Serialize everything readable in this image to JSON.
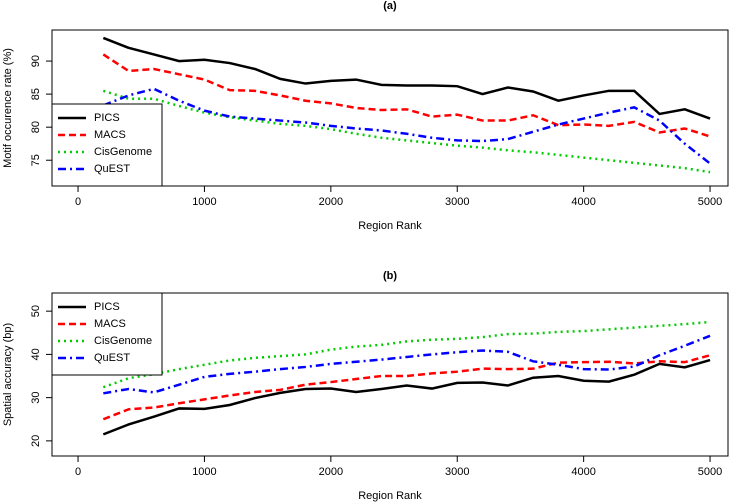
{
  "chart_data": [
    {
      "type": "line",
      "title": "(a)",
      "x_label": "Region Rank",
      "y_label": "Motif occurence rate (%)",
      "x": [
        200,
        400,
        600,
        800,
        1000,
        1200,
        1400,
        1600,
        1800,
        2000,
        2200,
        2400,
        2600,
        2800,
        3000,
        3200,
        3400,
        3600,
        3800,
        4000,
        4200,
        4400,
        4600,
        4800,
        5000
      ],
      "xlim": [
        -206,
        5142
      ],
      "ylim": [
        71.1,
        94.7
      ],
      "xticks": [
        0,
        1000,
        2000,
        3000,
        4000,
        5000
      ],
      "yticks": [
        75,
        80,
        85,
        90
      ],
      "legend": "bottomleft",
      "series": [
        {
          "name": "PICS",
          "color": "#000000",
          "line_style": "solid",
          "values": [
            93.5,
            92,
            91,
            90,
            90.2,
            89.7,
            88.8,
            87.3,
            86.6,
            87,
            87.2,
            86.4,
            86.3,
            86.3,
            86.2,
            85,
            86,
            85.4,
            84,
            84.8,
            85.5,
            85.5,
            82,
            82.7,
            81.3
          ]
        },
        {
          "name": "MACS",
          "color": "#ff0000",
          "line_style": "dashed",
          "values": [
            91,
            88.5,
            88.8,
            88,
            87.2,
            85.6,
            85.5,
            84.8,
            84,
            83.6,
            82.9,
            82.6,
            82.7,
            81.6,
            81.9,
            81,
            81,
            81.8,
            80.3,
            80.4,
            80.2,
            80.8,
            79.2,
            79.8,
            78.6
          ]
        },
        {
          "name": "CisGenome",
          "color": "#00cc00",
          "line_style": "dotted",
          "values": [
            85.5,
            84.3,
            84.3,
            83.2,
            82.2,
            81.5,
            81,
            80.5,
            80.2,
            79.7,
            79,
            78.4,
            78,
            77.6,
            77.2,
            76.9,
            76.5,
            76.2,
            75.8,
            75.4,
            75,
            74.6,
            74.2,
            73.8,
            73.2
          ]
        },
        {
          "name": "QuEST",
          "color": "#0000ff",
          "line_style": "dashdot",
          "values": [
            83.3,
            84.8,
            85.8,
            84,
            82.5,
            81.6,
            81.3,
            81,
            80.7,
            80.2,
            79.8,
            79.5,
            79,
            78.4,
            78,
            77.9,
            78.2,
            79.3,
            80.4,
            81.3,
            82.2,
            83,
            81,
            77.5,
            74.5
          ]
        }
      ]
    },
    {
      "type": "line",
      "title": "(b)",
      "x_label": "Region Rank",
      "y_label": "Spatial accuracy (bp)",
      "x": [
        200,
        400,
        600,
        800,
        1000,
        1200,
        1400,
        1600,
        1800,
        2000,
        2200,
        2400,
        2600,
        2800,
        3000,
        3200,
        3400,
        3600,
        3800,
        4000,
        4200,
        4400,
        4600,
        4800,
        5000
      ],
      "xlim": [
        -206,
        5142
      ],
      "ylim": [
        16.5,
        54.2
      ],
      "xticks": [
        0,
        1000,
        2000,
        3000,
        4000,
        5000
      ],
      "yticks": [
        20,
        30,
        40,
        50
      ],
      "legend": "topleft",
      "series": [
        {
          "name": "PICS",
          "color": "#000000",
          "line_style": "solid",
          "values": [
            21.5,
            23.8,
            25.6,
            27.5,
            27.4,
            28.3,
            29.9,
            31.1,
            32,
            32.1,
            31.3,
            32,
            32.8,
            32.1,
            33.4,
            33.5,
            32.8,
            34.6,
            35,
            33.9,
            33.7,
            35.3,
            37.8,
            37,
            38.7
          ]
        },
        {
          "name": "MACS",
          "color": "#ff0000",
          "line_style": "dashed",
          "values": [
            25,
            27.3,
            27.7,
            28.7,
            29.6,
            30.5,
            31.3,
            31.8,
            33,
            33.6,
            34.3,
            35,
            35,
            35.6,
            36,
            36.7,
            36.6,
            36.7,
            38.1,
            38.2,
            38.3,
            37.9,
            38.4,
            38.2,
            39.8
          ]
        },
        {
          "name": "CisGenome",
          "color": "#00cc00",
          "line_style": "dotted",
          "values": [
            32.4,
            34.5,
            35.4,
            36.6,
            37.6,
            38.6,
            39.2,
            39.6,
            40,
            41.1,
            41.8,
            42.2,
            43,
            43.4,
            43.6,
            44,
            44.7,
            44.8,
            45.2,
            45.4,
            45.8,
            46.2,
            46.6,
            47,
            47.5
          ]
        },
        {
          "name": "QuEST",
          "color": "#0000ff",
          "line_style": "dashdot",
          "values": [
            31,
            32,
            31.2,
            33,
            34.8,
            35.5,
            36,
            36.6,
            37.1,
            37.8,
            38.3,
            38.8,
            39.4,
            40,
            40.5,
            40.9,
            40.6,
            38.4,
            37.6,
            36.6,
            36.5,
            37.2,
            39.8,
            42,
            44.3
          ]
        }
      ]
    }
  ]
}
